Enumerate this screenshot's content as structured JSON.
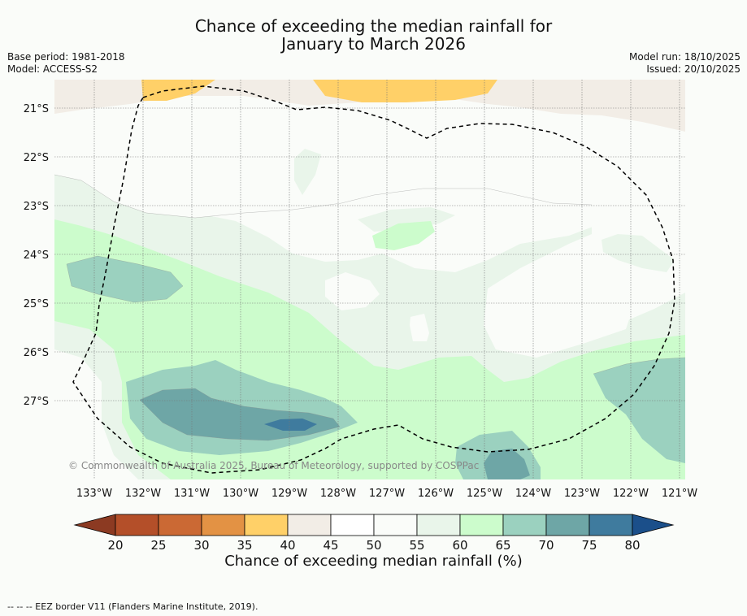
{
  "title_line1": "Chance of exceeding the median rainfall for",
  "title_line2": "January to March 2026",
  "meta": {
    "base_period": "Base period: 1981-2018",
    "model": "Model: ACCESS-S2",
    "model_run": "Model run: 18/10/2025",
    "issued": "Issued: 20/10/2025"
  },
  "map": {
    "lat_labels": [
      "21°S",
      "22°S",
      "23°S",
      "24°S",
      "25°S",
      "26°S",
      "27°S"
    ],
    "lon_labels": [
      "133°W",
      "132°W",
      "131°W",
      "130°W",
      "129°W",
      "128°W",
      "127°W",
      "126°W",
      "125°W",
      "124°W",
      "123°W",
      "122°W",
      "121°W"
    ],
    "copyright": "© Commonwealth of Australia 2025, Bureau of Meteorology, supported by COSPPac",
    "colors": {
      "c40": "#ffd068",
      "c45": "#f2ede6",
      "c55": "#fafcf9",
      "c60": "#e9f5ea",
      "c65": "#ccfccc",
      "c70": "#9bd1bf",
      "c75": "#6ea6a6",
      "c80": "#3f7b9e"
    }
  },
  "colorbar": {
    "ticks": [
      "20",
      "25",
      "30",
      "35",
      "40",
      "45",
      "50",
      "55",
      "60",
      "65",
      "70",
      "75",
      "80"
    ],
    "colors": [
      "#b44f29",
      "#cb6934",
      "#e39244",
      "#ffd068",
      "#f2ede6",
      "#ffffff",
      "#fafcf9",
      "#e9f5ea",
      "#ccfccc",
      "#9bd1bf",
      "#6ea6a6",
      "#3f7b9e"
    ],
    "low_color": "#8c3a22",
    "high_color": "#1b4f8a",
    "label": "Chance of exceeding median rainfall (%)"
  },
  "footer": "--  --  -- EEZ border V11 (Flanders Marine Institute, 2019)."
}
